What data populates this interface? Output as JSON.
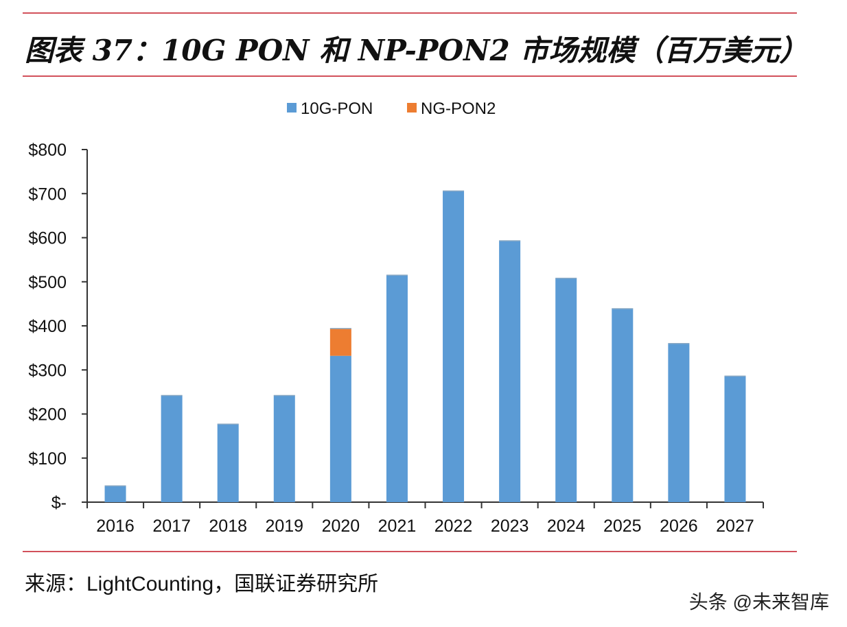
{
  "header": {
    "title": "图表 37：10G PON 和 NP-PON2 市场规模（百万美元）"
  },
  "footer": {
    "source_label": "来源：",
    "source_text": "LightCounting，国联证券研究所",
    "watermark": "头条 @未来智库"
  },
  "chart_data": {
    "type": "bar",
    "stacked": true,
    "categories": [
      "2016",
      "2017",
      "2018",
      "2019",
      "2020",
      "2021",
      "2022",
      "2023",
      "2024",
      "2025",
      "2026",
      "2027"
    ],
    "series": [
      {
        "name": "10G-PON",
        "color": "#5b9bd5",
        "values": [
          37,
          242,
          177,
          242,
          332,
          515,
          706,
          593,
          508,
          439,
          360,
          286
        ]
      },
      {
        "name": "NG-PON2",
        "color": "#ed7d31",
        "values": [
          0,
          0,
          0,
          0,
          62,
          0,
          0,
          0,
          0,
          0,
          0,
          0
        ]
      }
    ],
    "ylim": [
      0,
      800
    ],
    "yticks": [
      0,
      100,
      200,
      300,
      400,
      500,
      600,
      700,
      800
    ],
    "ytick_labels": [
      "$-",
      "$100",
      "$200",
      "$300",
      "$400",
      "$500",
      "$600",
      "$700",
      "$800"
    ],
    "legend_position": "top-center",
    "grid": false
  }
}
